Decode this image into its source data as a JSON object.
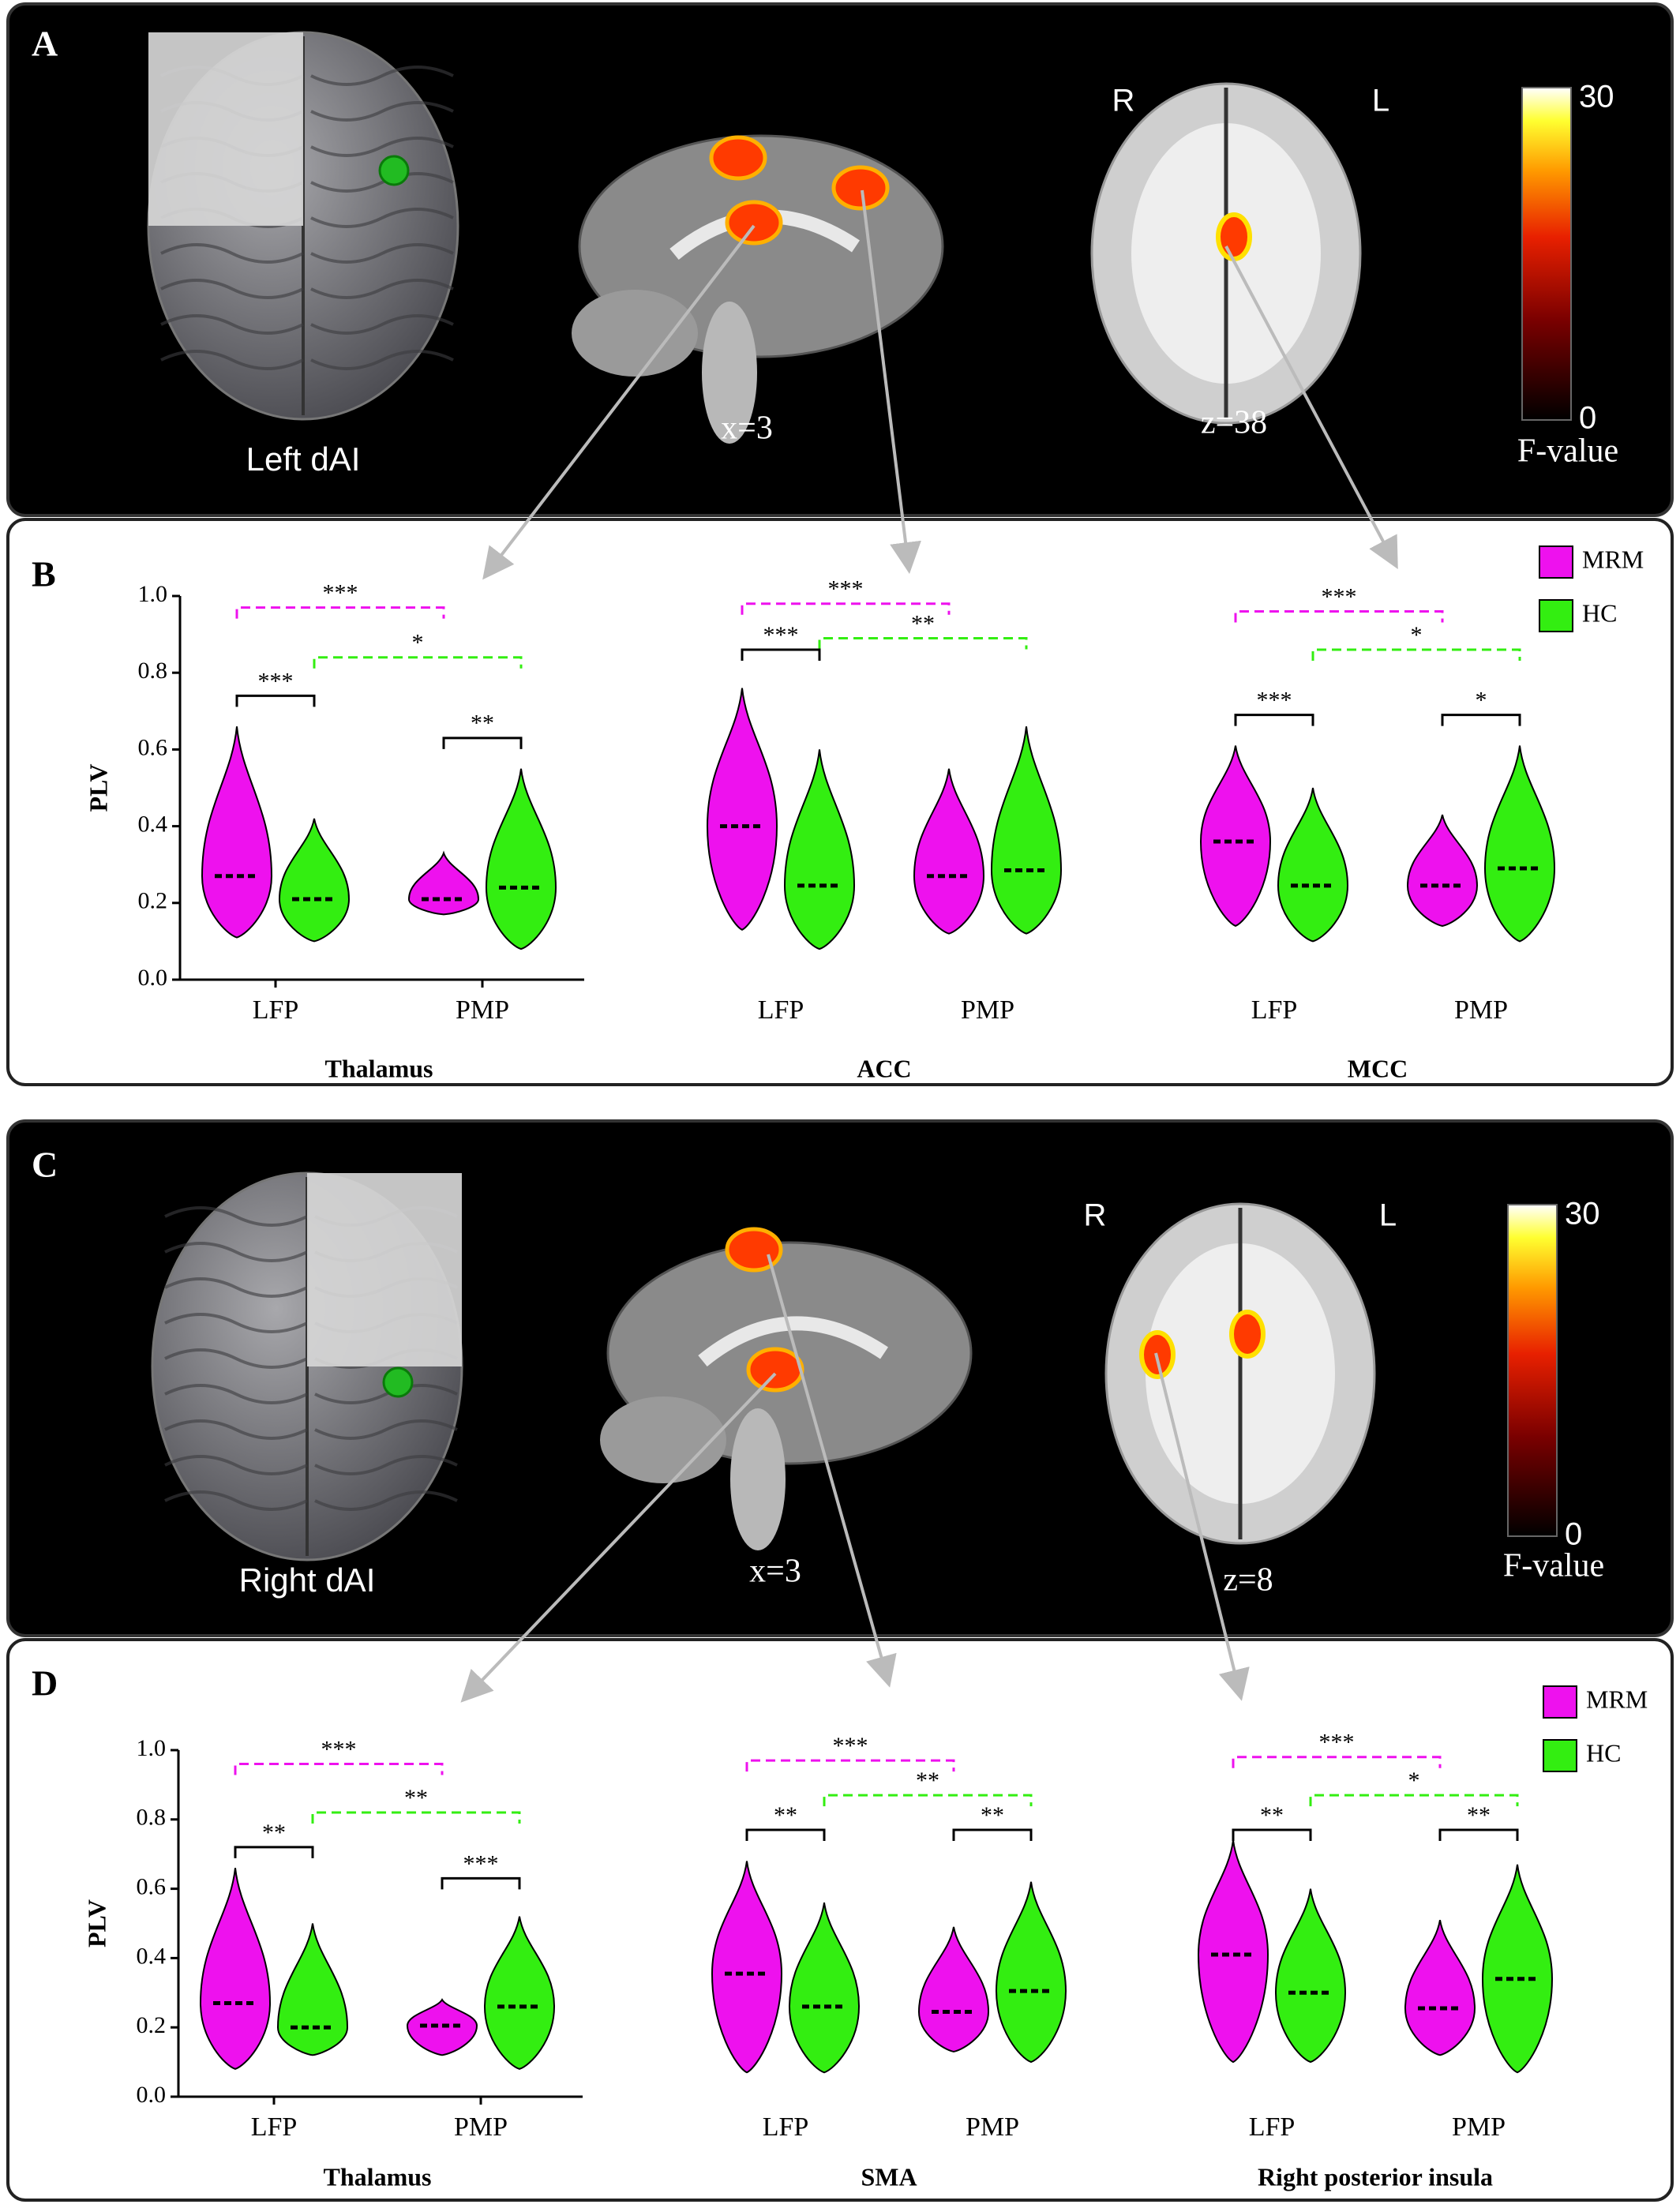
{
  "panels": [
    {
      "panel": "A",
      "seed": "Left dAI",
      "sagittal": "x=3",
      "axial": "z=38",
      "right": "R",
      "left": "L",
      "cbar_max": "30",
      "cbar_min": "0",
      "cbar_label": "F-value"
    },
    {
      "panel": "C",
      "seed": "Right dAI",
      "sagittal": "x=3",
      "axial": "z=8",
      "right": "R",
      "left": "L",
      "cbar_max": "30",
      "cbar_min": "0",
      "cbar_label": "F-value"
    }
  ],
  "chart_data": [
    {
      "type": "violin",
      "panel": "B",
      "ylabel": "PLV",
      "ylim": [
        0,
        1
      ],
      "yticks": [
        {
          "value": 0,
          "label": "0.0"
        },
        0.2,
        0.4,
        0.6,
        0.8,
        {
          "value": 1,
          "label": "1.0"
        }
      ],
      "legend": "upper right",
      "series": [
        {
          "name": "MRM",
          "color": "#ee11ee"
        },
        {
          "name": "HC",
          "color": "#33ee11"
        }
      ],
      "subplots": [
        {
          "title": "Thalamus",
          "categories": [
            "LFP",
            "PMP"
          ],
          "series": [
            {
              "median": [
                0.27,
                0.21
              ],
              "min": [
                0.11,
                0.17
              ],
              "max": [
                0.66,
                0.33
              ]
            },
            {
              "median": [
                0.21,
                0.24
              ],
              "min": [
                0.1,
                0.08
              ],
              "max": [
                0.42,
                0.55
              ]
            }
          ],
          "brackets": [
            {
              "text": "***",
              "y": 0.97,
              "series": "MRM"
            },
            {
              "text": "*",
              "y": 0.84,
              "series": "HC"
            },
            {
              "text": "***",
              "y": 0.74,
              "category": "LFP"
            },
            {
              "text": "**",
              "y": 0.63,
              "category": "PMP"
            }
          ]
        },
        {
          "title": "ACC",
          "categories": [
            "LFP",
            "PMP"
          ],
          "series": [
            {
              "median": [
                0.4,
                0.27
              ],
              "min": [
                0.13,
                0.12
              ],
              "max": [
                0.76,
                0.55
              ]
            },
            {
              "median": [
                0.245,
                0.285
              ],
              "min": [
                0.08,
                0.12
              ],
              "max": [
                0.6,
                0.66
              ]
            }
          ],
          "brackets": [
            {
              "text": "***",
              "y": 0.98,
              "series": "MRM"
            },
            {
              "text": "**",
              "y": 0.89,
              "series": "HC"
            },
            {
              "text": "***",
              "y": 0.86,
              "category": "LFP"
            }
          ]
        },
        {
          "title": "MCC",
          "categories": [
            "LFP",
            "PMP"
          ],
          "series": [
            {
              "median": [
                0.36,
                0.245
              ],
              "min": [
                0.14,
                0.14
              ],
              "max": [
                0.61,
                0.43
              ]
            },
            {
              "median": [
                0.245,
                0.29
              ],
              "min": [
                0.1,
                0.1
              ],
              "max": [
                0.5,
                0.61
              ]
            }
          ],
          "brackets": [
            {
              "text": "***",
              "y": 0.96,
              "series": "MRM"
            },
            {
              "text": "*",
              "y": 0.86,
              "series": "HC"
            },
            {
              "text": "***",
              "y": 0.69,
              "category": "LFP"
            },
            {
              "text": "*",
              "y": 0.69,
              "category": "PMP"
            }
          ]
        }
      ]
    },
    {
      "type": "violin",
      "panel": "D",
      "ylabel": "PLV",
      "ylim": [
        0,
        1
      ],
      "yticks": [
        {
          "value": 0,
          "label": "0.0"
        },
        0.2,
        0.4,
        0.6,
        0.8,
        {
          "value": 1,
          "label": "1.0"
        }
      ],
      "legend": "upper right",
      "series": [
        {
          "name": "MRM",
          "color": "#ee11ee"
        },
        {
          "name": "HC",
          "color": "#33ee11"
        }
      ],
      "subplots": [
        {
          "title": "Thalamus",
          "categories": [
            "LFP",
            "PMP"
          ],
          "series": [
            {
              "median": [
                0.27,
                0.205
              ],
              "min": [
                0.08,
                0.12
              ],
              "max": [
                0.66,
                0.28
              ]
            },
            {
              "median": [
                0.2,
                0.26
              ],
              "min": [
                0.12,
                0.08
              ],
              "max": [
                0.5,
                0.52
              ]
            }
          ],
          "brackets": [
            {
              "text": "***",
              "y": 0.96,
              "series": "MRM"
            },
            {
              "text": "**",
              "y": 0.82,
              "series": "HC"
            },
            {
              "text": "**",
              "y": 0.72,
              "category": "LFP"
            },
            {
              "text": "***",
              "y": 0.63,
              "category": "PMP"
            }
          ]
        },
        {
          "title": "SMA",
          "categories": [
            "LFP",
            "PMP"
          ],
          "series": [
            {
              "median": [
                0.355,
                0.245
              ],
              "min": [
                0.07,
                0.13
              ],
              "max": [
                0.68,
                0.49
              ]
            },
            {
              "median": [
                0.26,
                0.305
              ],
              "min": [
                0.07,
                0.1
              ],
              "max": [
                0.56,
                0.62
              ]
            }
          ],
          "brackets": [
            {
              "text": "***",
              "y": 0.97,
              "series": "MRM"
            },
            {
              "text": "**",
              "y": 0.87,
              "series": "HC"
            },
            {
              "text": "**",
              "y": 0.77,
              "category": "LFP"
            },
            {
              "text": "**",
              "y": 0.77,
              "category": "PMP"
            }
          ]
        },
        {
          "title": "Right posterior insula",
          "categories": [
            "LFP",
            "PMP"
          ],
          "series": [
            {
              "median": [
                0.41,
                0.255
              ],
              "min": [
                0.1,
                0.12
              ],
              "max": [
                0.74,
                0.51
              ]
            },
            {
              "median": [
                0.3,
                0.34
              ],
              "min": [
                0.1,
                0.07
              ],
              "max": [
                0.6,
                0.67
              ]
            }
          ],
          "brackets": [
            {
              "text": "***",
              "y": 0.98,
              "series": "MRM"
            },
            {
              "text": "*",
              "y": 0.87,
              "series": "HC"
            },
            {
              "text": "**",
              "y": 0.77,
              "category": "LFP"
            },
            {
              "text": "**",
              "y": 0.77,
              "category": "PMP"
            }
          ]
        }
      ]
    }
  ]
}
